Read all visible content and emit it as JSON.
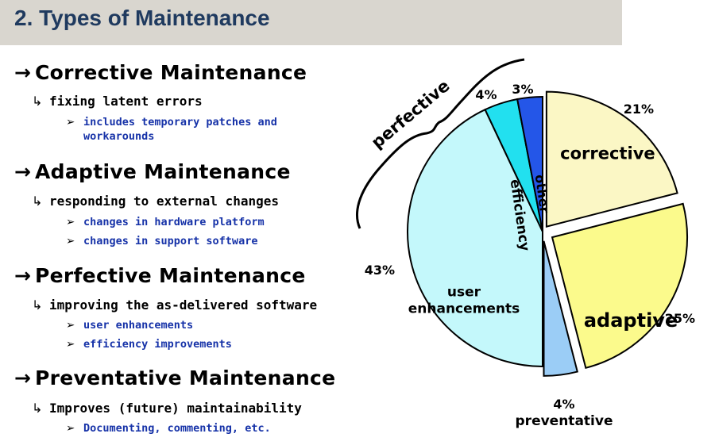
{
  "title": "2. Types of Maintenance",
  "sections": [
    {
      "heading": "Corrective Maintenance",
      "sub": "fixing latent errors",
      "bullets": [
        "includes temporary patches and workarounds"
      ]
    },
    {
      "heading": "Adaptive Maintenance",
      "sub": "responding to external changes",
      "bullets": [
        "changes in hardware platform",
        "changes in support software"
      ]
    },
    {
      "heading": "Perfective Maintenance",
      "sub": "improving the as-delivered software",
      "bullets": [
        "user enhancements",
        "efficiency improvements"
      ]
    },
    {
      "heading": "Preventative Maintenance",
      "sub": "Improves (future) maintainability",
      "bullets": [
        "Documenting, commenting, etc."
      ]
    }
  ],
  "glyphs": {
    "arrow": "→",
    "hook": "↳",
    "triangle": "➢"
  },
  "chart_data": {
    "type": "pie",
    "slices": [
      {
        "label": "corrective",
        "value": 21,
        "value_label": "21%",
        "color": "#fbf7c5"
      },
      {
        "label": "adaptive",
        "value": 25,
        "value_label": "25%",
        "color": "#fbfa8c"
      },
      {
        "label": "preventative",
        "value": 4,
        "value_label": "4%",
        "color": "#9bcdf6"
      },
      {
        "label": "user enhancements",
        "label_lines": [
          "user",
          "enhancements"
        ],
        "value": 43,
        "value_label": "43%",
        "color": "#c4f8fb"
      },
      {
        "label": "efficiency",
        "value": 4,
        "value_label": "4%",
        "color": "#22e0ef"
      },
      {
        "label": "other",
        "value": 3,
        "value_label": "3%",
        "color": "#2456e8"
      }
    ],
    "group_label": "perfective",
    "group_members": [
      "user enhancements",
      "efficiency",
      "other"
    ]
  }
}
